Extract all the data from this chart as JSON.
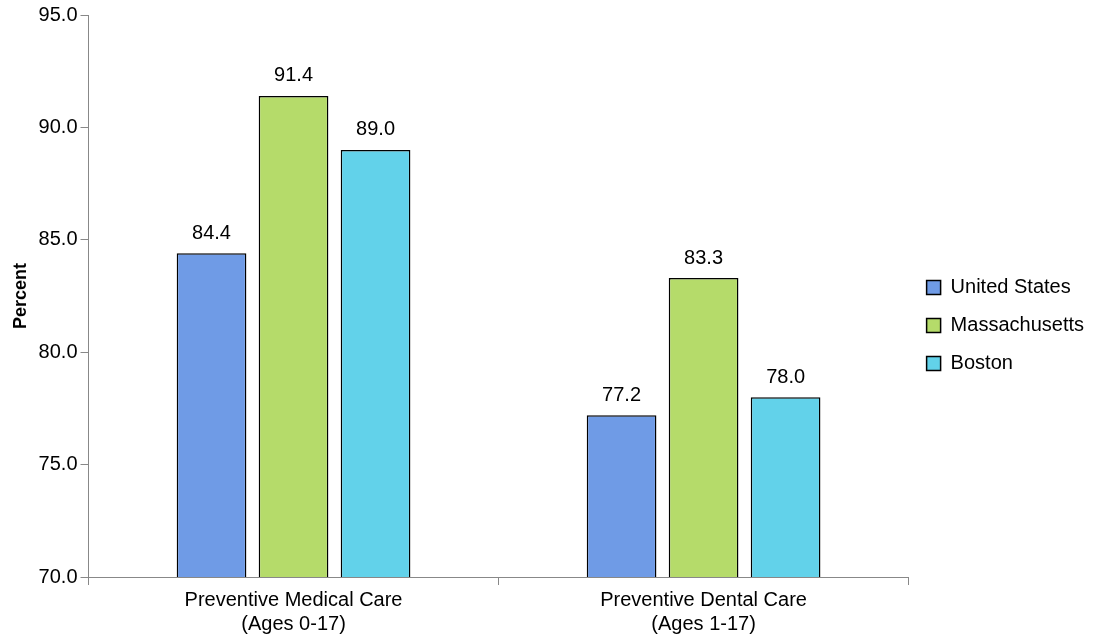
{
  "chart_data": {
    "type": "bar",
    "ylabel": "Percent",
    "categories": [
      "Preventive Medical Care\n(Ages 0-17)",
      "Preventive Dental Care\n(Ages 1-17)"
    ],
    "series": [
      {
        "name": "United States",
        "color": "#6f9be6",
        "values": [
          84.4,
          77.2
        ],
        "value_labels": [
          "84.4",
          "77.2"
        ]
      },
      {
        "name": "Massachusetts",
        "color": "#b5db6a",
        "values": [
          91.4,
          83.3
        ],
        "value_labels": [
          "91.4",
          "83.3"
        ]
      },
      {
        "name": "Boston",
        "color": "#62d2ea",
        "values": [
          89.0,
          78.0
        ],
        "value_labels": [
          "89.0",
          "78.0"
        ]
      }
    ],
    "ylim": [
      70,
      95
    ],
    "yticks": [
      {
        "value": 70,
        "label": "70.0"
      },
      {
        "value": 75,
        "label": "75.0"
      },
      {
        "value": 80,
        "label": "80.0"
      },
      {
        "value": 85,
        "label": "85.0"
      },
      {
        "value": 90,
        "label": "90.0"
      },
      {
        "value": 95,
        "label": "95.0"
      }
    ],
    "grid": false,
    "legend": "right"
  }
}
